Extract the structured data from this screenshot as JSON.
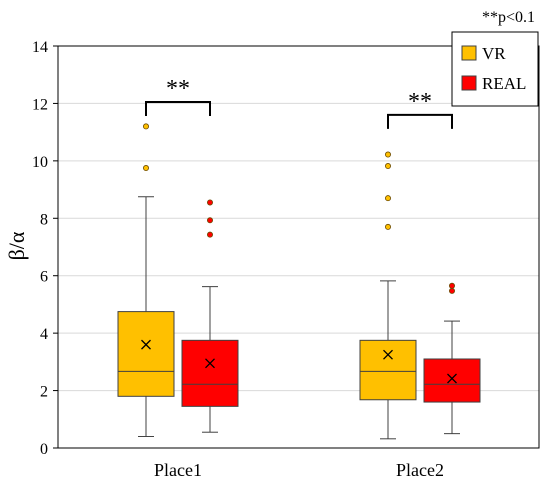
{
  "chart_data": {
    "type": "box",
    "ylabel": "β/α",
    "xlabel": "",
    "ylim": [
      0,
      14
    ],
    "yticks": [
      0,
      2,
      4,
      6,
      8,
      10,
      12,
      14
    ],
    "grid": true,
    "legend_position": "top-right",
    "note": "**p<0.1",
    "colors": {
      "VR": "#ffc000",
      "REAL": "#ff0000"
    },
    "categories": [
      "Place1",
      "Place2"
    ],
    "series": [
      {
        "name": "VR",
        "boxes": [
          {
            "min": 0.4,
            "q1": 1.8,
            "median": 2.67,
            "q3": 4.75,
            "max": 8.75,
            "mean": 3.6,
            "outliers": [
              9.75,
              11.2
            ]
          },
          {
            "min": 0.32,
            "q1": 1.68,
            "median": 2.67,
            "q3": 3.75,
            "max": 5.82,
            "mean": 3.25,
            "outliers": [
              7.7,
              8.7,
              9.82,
              10.22
            ]
          }
        ]
      },
      {
        "name": "REAL",
        "boxes": [
          {
            "min": 0.55,
            "q1": 1.45,
            "median": 2.22,
            "q3": 3.75,
            "max": 5.62,
            "mean": 2.95,
            "outliers": [
              7.43,
              7.93,
              8.55
            ]
          },
          {
            "min": 0.5,
            "q1": 1.6,
            "median": 2.22,
            "q3": 3.1,
            "max": 4.42,
            "mean": 2.42,
            "outliers": [
              5.47,
              5.65
            ]
          }
        ]
      }
    ],
    "annotations": [
      {
        "text": "**",
        "category": "Place1",
        "bracket_y": 12.05
      },
      {
        "text": "**",
        "category": "Place2",
        "bracket_y": 11.6
      }
    ]
  }
}
